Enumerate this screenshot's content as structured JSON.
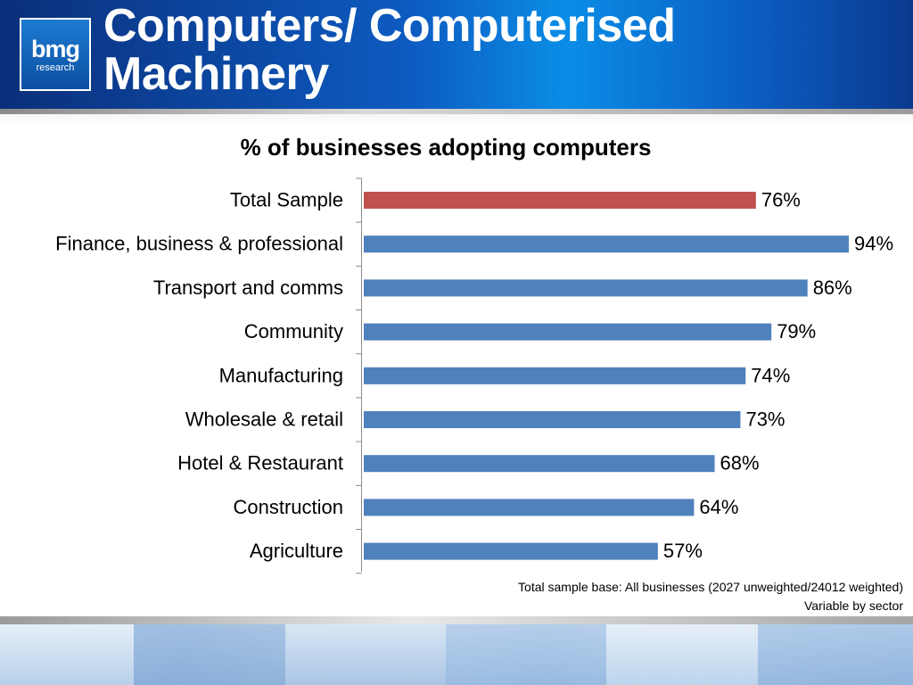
{
  "header": {
    "logo_main": "bmg",
    "logo_sub": "research",
    "title_line1": "Computers/ Computerised",
    "title_line2": "Machinery"
  },
  "colors": {
    "highlight_bar": "#C0504D",
    "bar": "#4F81BD",
    "header_blue": "#0D5BC1"
  },
  "chart_data": {
    "type": "bar",
    "orientation": "horizontal",
    "title": "% of businesses adopting computers",
    "categories": [
      "Total Sample",
      "Finance, business & professional",
      "Transport and comms",
      "Community",
      "Manufacturing",
      "Wholesale & retail",
      "Hotel & Restaurant",
      "Construction",
      "Agriculture"
    ],
    "values": [
      76,
      94,
      86,
      79,
      74,
      73,
      68,
      64,
      57
    ],
    "data_labels": [
      "76%",
      "94%",
      "86%",
      "79%",
      "74%",
      "73%",
      "68%",
      "64%",
      "57%"
    ],
    "highlighted_category": "Total Sample",
    "xlim": [
      0,
      100
    ],
    "grid": false,
    "legend": "none"
  },
  "footnote": {
    "line1": "Total sample base: All businesses (2027 unweighted/24012 weighted)",
    "line2": "Variable by sector"
  }
}
